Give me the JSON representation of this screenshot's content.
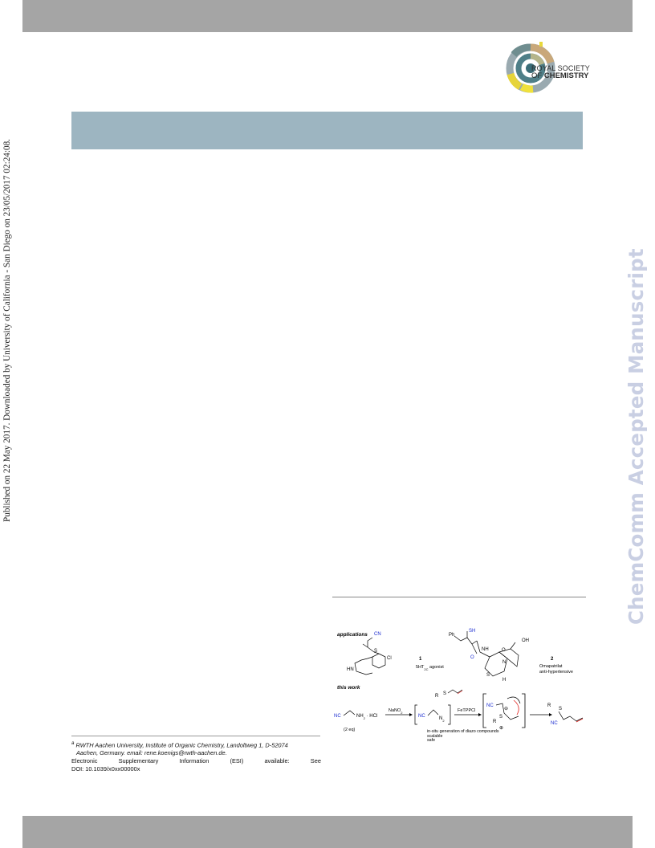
{
  "page": {
    "side_note": "Published on 22 May 2017. Downloaded by University of California - San Diego on 23/05/2017 02:24:08.",
    "watermark": "ChemComm Accepted Manuscript"
  },
  "logo": {
    "line1": "ROYAL SOCIETY",
    "line2_prefix": "OF ",
    "line2_bold": "CHEMISTRY"
  },
  "footnotes": {
    "affiliation_marker": "a",
    "affiliation_line1": "RWTH Aachen University, Institute of Organic Chemistry, Landoltweg 1, D-52074",
    "affiliation_line2": "Aachen, Germany. email: rene.koenigs@rwth-aachen.de.",
    "esi_words": [
      "Electronic",
      "Supplementary",
      "Information",
      "(ESI)",
      "available:",
      "See"
    ],
    "doi": "DOI: 10.1039/x0xx00000x"
  },
  "scheme": {
    "applications_label": "applications",
    "this_work_label": "this work",
    "compound1_number": "1",
    "compound1_desc": "5HT",
    "compound1_desc_sub": "2C",
    "compound1_desc_tail": " agonist",
    "compound2_number": "2",
    "compound2_name": "Omapatrilat",
    "compound2_desc": "anti-hypertensive",
    "reagent_nano2": "NaNO",
    "reagent_nano2_sub": "2",
    "reagent_fetppcl": "FeTPPCl",
    "amine_salt": "NH",
    "amine_salt_sub": "2",
    "amine_salt_tail": " · HCl",
    "equiv": "(2 eq)",
    "nitrile": "NC",
    "diazo_n2": "N",
    "diazo_n2_sub": "2",
    "bullet1": "in-situ generation of diazo compounds",
    "bullet2": "scalable",
    "bullet3": "safe",
    "label_cn": "CN",
    "label_s": "S",
    "label_cl": "Cl",
    "label_hn": "HN",
    "label_ph": "Ph",
    "label_sh": "SH",
    "label_o": "O",
    "label_nh": "NH",
    "label_oh": "OH",
    "label_n": "N",
    "label_h": "H",
    "label_r": "R",
    "label_plus": "⊕",
    "label_minus": "⊖",
    "label_fe": "Fe"
  }
}
